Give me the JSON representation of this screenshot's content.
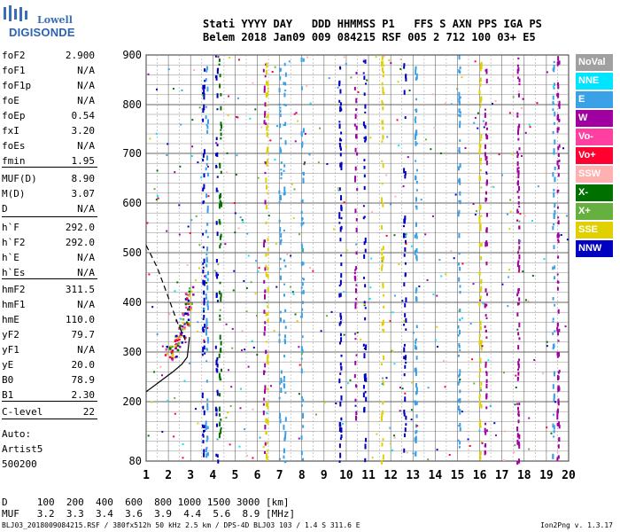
{
  "logo": {
    "word1": "Lowell",
    "word2": "DIGISONDE"
  },
  "header": {
    "line1": "Stati YYYY DAY   DDD HHMMSS P1   FFS S AXN PPS IGA PS",
    "line2": "Belem 2018 Jan09 009 084215 RSF 005 2 712 100 03+ E5"
  },
  "params": [
    {
      "label": "foF2",
      "value": "2.900"
    },
    {
      "label": "foF1",
      "value": "N/A"
    },
    {
      "label": "foF1p",
      "value": "N/A"
    },
    {
      "label": "foE",
      "value": "N/A"
    },
    {
      "label": "foEp",
      "value": "0.54"
    },
    {
      "label": "fxI",
      "value": "3.20"
    },
    {
      "label": "foEs",
      "value": "N/A"
    },
    {
      "label": "fmin",
      "value": "1.95"
    },
    {
      "label": "MUF(D)",
      "value": "8.90"
    },
    {
      "label": "M(D)",
      "value": "3.07"
    },
    {
      "label": "D",
      "value": "N/A"
    },
    {
      "label": "h`F",
      "value": "292.0"
    },
    {
      "label": "h`F2",
      "value": "292.0"
    },
    {
      "label": "h`E",
      "value": "N/A"
    },
    {
      "label": "h`Es",
      "value": "N/A"
    },
    {
      "label": "hmF2",
      "value": "311.5"
    },
    {
      "label": "hmF1",
      "value": "N/A"
    },
    {
      "label": "hmE",
      "value": "110.0"
    },
    {
      "label": "yF2",
      "value": "79.7"
    },
    {
      "label": "yF1",
      "value": "N/A"
    },
    {
      "label": "yE",
      "value": "20.0"
    },
    {
      "label": "B0",
      "value": "78.9"
    },
    {
      "label": "B1",
      "value": "2.30"
    },
    {
      "label": "C-level",
      "value": "22"
    }
  ],
  "auto": {
    "line1": "Auto:",
    "line2": "Artist5",
    "line3": "500200"
  },
  "legend": [
    {
      "label": "NoVal",
      "color": "#a0a0a0"
    },
    {
      "label": "NNE",
      "color": "#00e5ff"
    },
    {
      "label": "E",
      "color": "#3aa0e8"
    },
    {
      "label": "W",
      "color": "#a000a0"
    },
    {
      "label": "Vo-",
      "color": "#ff40a0"
    },
    {
      "label": "Vo+",
      "color": "#ff0030"
    },
    {
      "label": "SSW",
      "color": "#ffb0b0"
    },
    {
      "label": "X-",
      "color": "#007000"
    },
    {
      "label": "X+",
      "color": "#66b040"
    },
    {
      "label": "SSE",
      "color": "#e0d000"
    },
    {
      "label": "NNW",
      "color": "#0000c0"
    }
  ],
  "muf_table": {
    "d_line": "D     100  200  400  600  800 1000 1500 3000 [km]",
    "muf_line": "MUF   3.2  3.3  3.4  3.6  3.9  4.4  5.6  8.9 [MHz]"
  },
  "footer": "BLJ03_2018009084215.RSF / 380fx512h 50 kHz 2.5 km / DPS-4D BLJ03 103 / 1.4 S 311.6 E",
  "version": "Ion2Png v. 1.3.17",
  "chart_data": {
    "type": "scatter",
    "title": "",
    "xlabel": "",
    "ylabel": "",
    "xlim": [
      1,
      20
    ],
    "ylim": [
      80,
      900
    ],
    "x_ticks": [
      1,
      2,
      3,
      4,
      5,
      6,
      7,
      8,
      9,
      10,
      11,
      12,
      13,
      14,
      15,
      16,
      17,
      18,
      19,
      20
    ],
    "y_ticks": [
      80,
      200,
      300,
      400,
      500,
      600,
      700,
      800,
      900
    ],
    "grid": true,
    "series": [
      {
        "color": "#0000c0",
        "x": [
          3.55,
          4.2,
          5.45,
          9.7,
          10.8,
          12.6
        ],
        "y": [
          900,
          900,
          900,
          900,
          900,
          900
        ]
      },
      {
        "color": "#a000a0",
        "x": [
          6.3,
          10.4,
          16.25,
          17.7,
          19.5
        ],
        "y": [
          900,
          900,
          900,
          900,
          900
        ]
      },
      {
        "color": "#3aa0e8",
        "x": [
          7.0,
          7.2,
          13.1,
          15.05,
          19.3
        ],
        "y": [
          900,
          900,
          900,
          900,
          900
        ]
      }
    ],
    "trace_points": [
      {
        "x": 2.0,
        "y": 300
      },
      {
        "x": 2.2,
        "y": 305
      },
      {
        "x": 2.4,
        "y": 320
      },
      {
        "x": 2.6,
        "y": 340
      },
      {
        "x": 2.75,
        "y": 365
      },
      {
        "x": 2.85,
        "y": 390
      },
      {
        "x": 2.9,
        "y": 420
      }
    ],
    "profile_curve": [
      {
        "x": 1.0,
        "y": 220
      },
      {
        "x": 1.6,
        "y": 240
      },
      {
        "x": 2.2,
        "y": 260
      },
      {
        "x": 2.6,
        "y": 275
      },
      {
        "x": 2.85,
        "y": 290
      },
      {
        "x": 2.95,
        "y": 330
      }
    ],
    "dashed_curve": [
      {
        "x": 1.0,
        "y": 515
      },
      {
        "x": 1.5,
        "y": 470
      },
      {
        "x": 2.0,
        "y": 410
      },
      {
        "x": 2.4,
        "y": 360
      },
      {
        "x": 2.8,
        "y": 320
      }
    ]
  }
}
